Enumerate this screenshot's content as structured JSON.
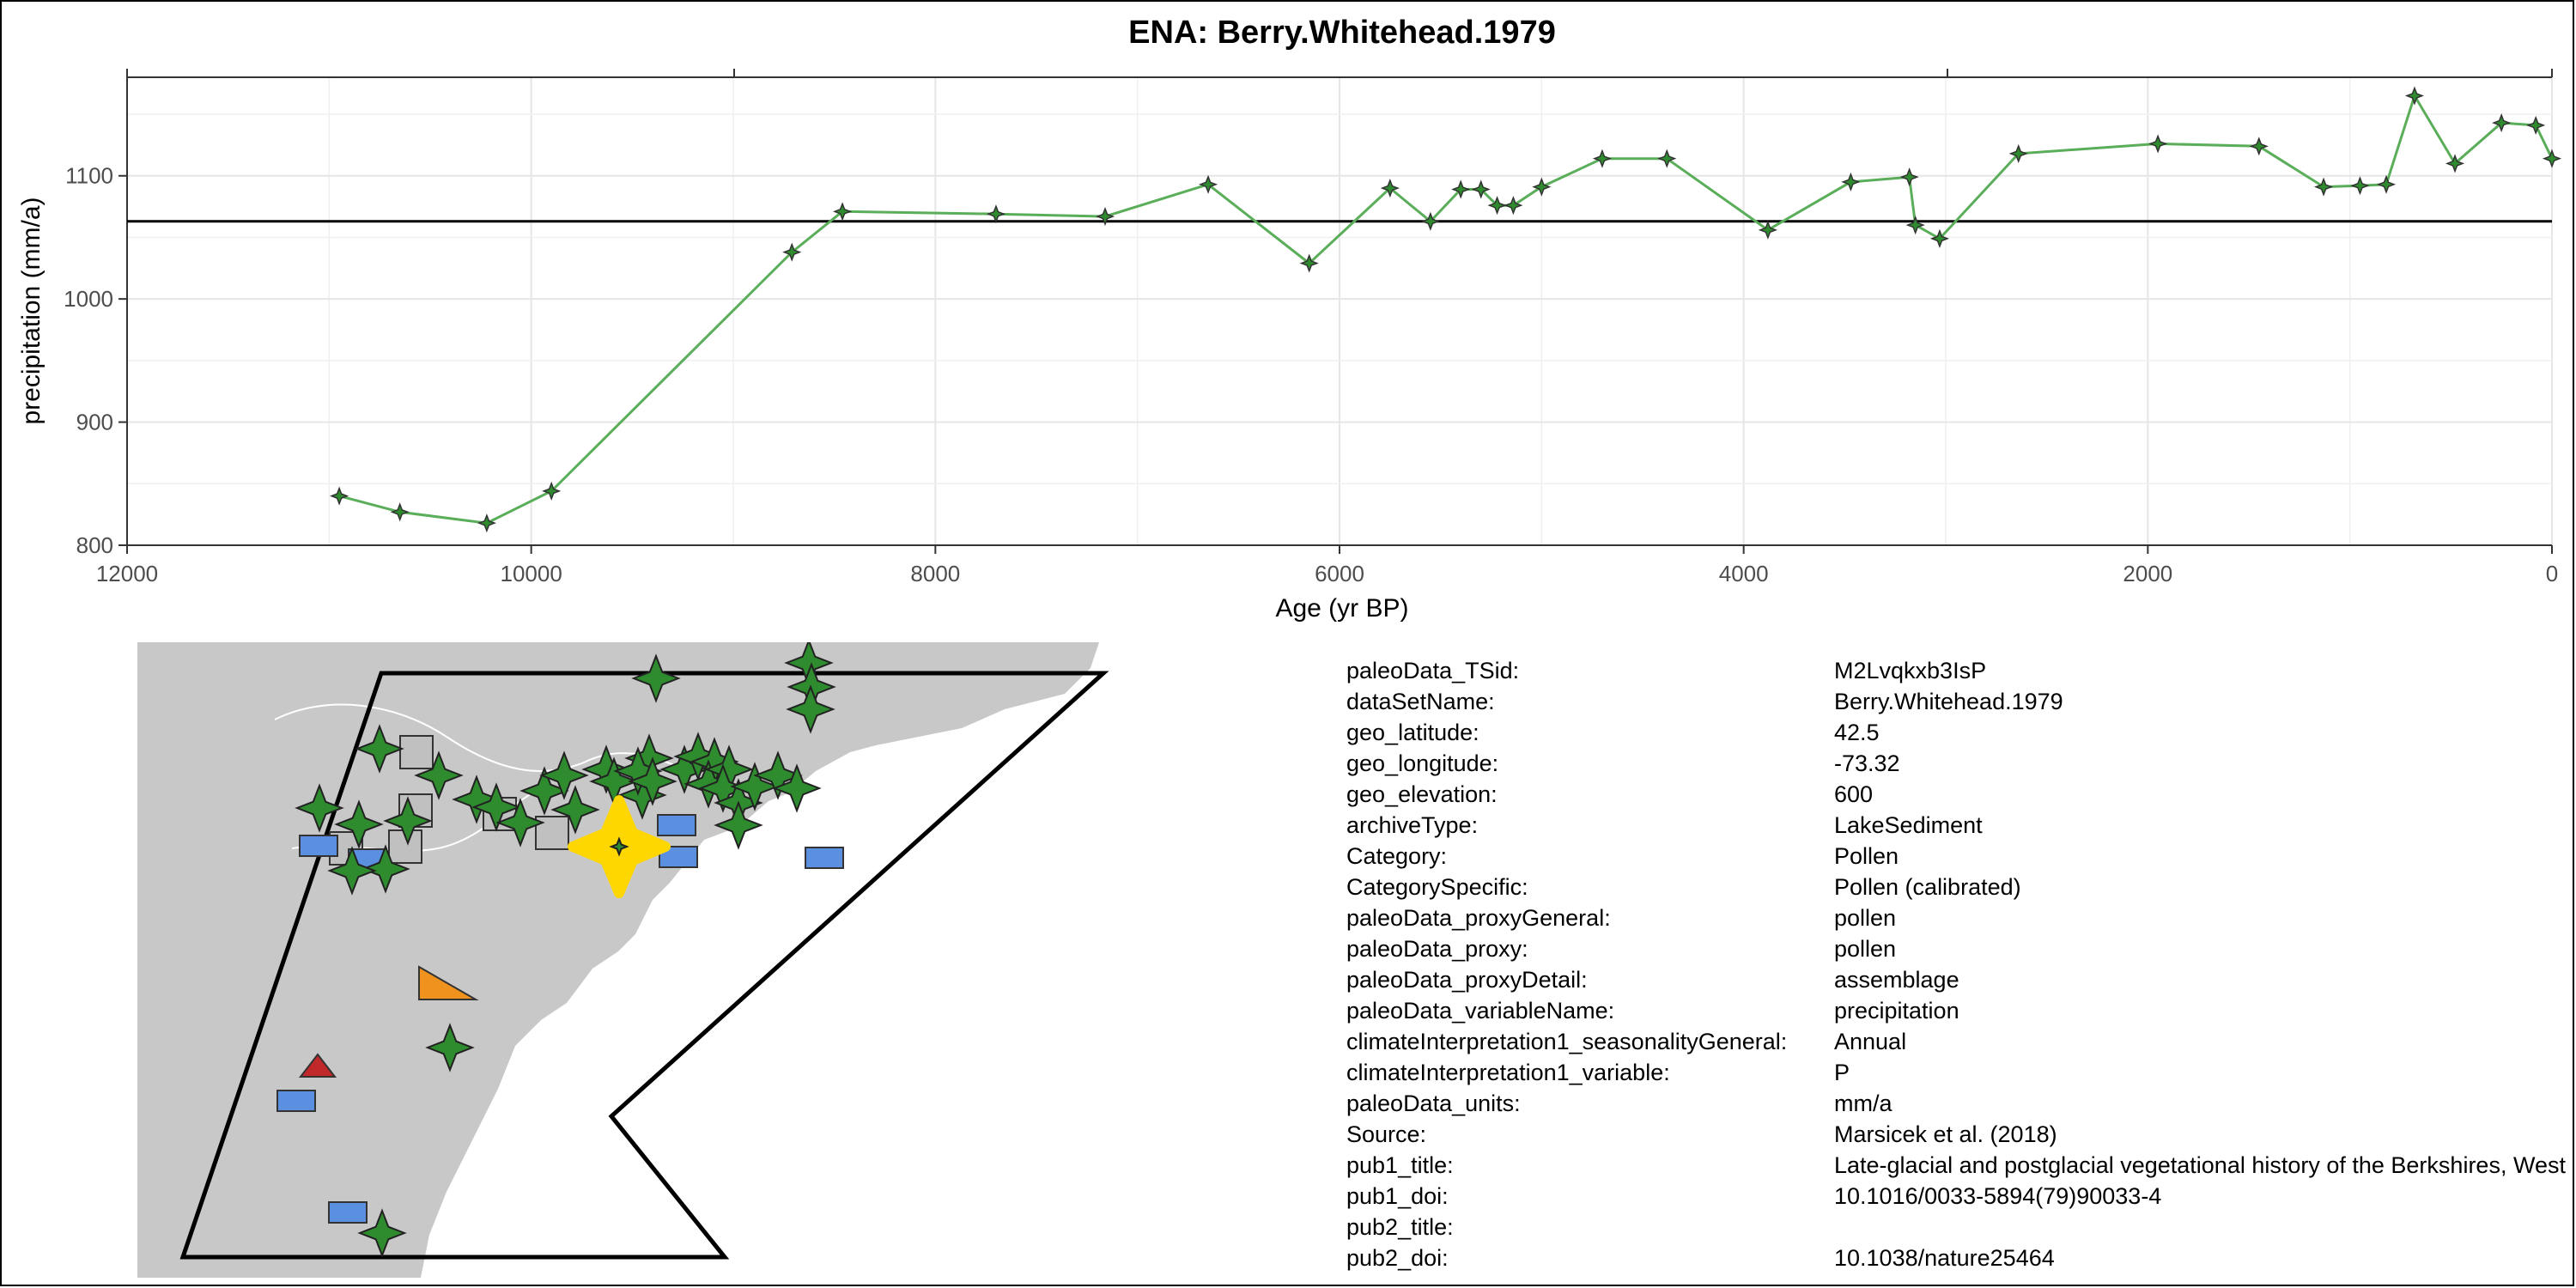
{
  "chart_data": {
    "type": "line",
    "title": "ENA: Berry.Whitehead.1979",
    "xlabel": "Age (yr BP)",
    "ylabel": "precipitation (mm/a)",
    "xlim": [
      12000,
      0
    ],
    "ylim": [
      800,
      1180
    ],
    "x_reversed": true,
    "xticks": [
      12000,
      10000,
      8000,
      6000,
      4000,
      2000,
      0
    ],
    "xtick_labels": [
      "12000",
      "10000",
      "8000",
      "6000",
      "4000",
      "2000",
      "0"
    ],
    "yticks": [
      800,
      900,
      1000,
      1100
    ],
    "ytick_labels": [
      "800",
      "900",
      "1000",
      "1100"
    ],
    "grid": true,
    "line_color": "#5aae5a",
    "reference_line": 1063,
    "series": [
      {
        "x": [
          10950,
          10650,
          10220,
          9900,
          8710,
          8460,
          7700,
          7160,
          6650,
          6150,
          5750,
          5550,
          5400,
          5300,
          5220,
          5140,
          5000,
          4700,
          4380,
          3880,
          3470,
          3180,
          3150,
          3030,
          2640,
          1950,
          1450,
          1130,
          950,
          820,
          680,
          480,
          250,
          80,
          0
        ],
        "y": [
          840,
          827,
          818,
          844,
          1038,
          1071,
          1069,
          1067,
          1093,
          1029,
          1090,
          1063,
          1089,
          1089,
          1076,
          1076,
          1091,
          1114,
          1114,
          1056,
          1095,
          1099,
          1060,
          1049,
          1118,
          1126,
          1124,
          1091,
          1092,
          1093,
          1165,
          1110,
          1143,
          1141,
          1114
        ]
      }
    ]
  },
  "metadata": [
    {
      "key": "paleoData_TSid:",
      "value": "M2Lvqkxb3IsP"
    },
    {
      "key": "dataSetName:",
      "value": "Berry.Whitehead.1979"
    },
    {
      "key": "geo_latitude:",
      "value": "42.5"
    },
    {
      "key": "geo_longitude:",
      "value": "-73.32"
    },
    {
      "key": "geo_elevation:",
      "value": "600"
    },
    {
      "key": "archiveType:",
      "value": "LakeSediment"
    },
    {
      "key": "Category:",
      "value": "Pollen"
    },
    {
      "key": "CategorySpecific:",
      "value": "Pollen (calibrated)"
    },
    {
      "key": "paleoData_proxyGeneral:",
      "value": "pollen"
    },
    {
      "key": "paleoData_proxy:",
      "value": "pollen"
    },
    {
      "key": "paleoData_proxyDetail:",
      "value": "assemblage"
    },
    {
      "key": "paleoData_variableName:",
      "value": "precipitation"
    },
    {
      "key": "climateInterpretation1_seasonalityGeneral:",
      "value": "Annual"
    },
    {
      "key": "climateInterpretation1_variable:",
      "value": "P"
    },
    {
      "key": "paleoData_units:",
      "value": "mm/a"
    },
    {
      "key": "Source:",
      "value": "Marsicek et al. (2018)"
    },
    {
      "key": "pub1_title:",
      "value": "Late-glacial and postglacial vegetational history of the Berkshires, Western Massachusetts"
    },
    {
      "key": "pub1_doi:",
      "value": "10.1016/0033-5894(79)90033-4"
    },
    {
      "key": "pub2_title:",
      "value": ""
    },
    {
      "key": "pub2_doi:",
      "value": "10.1038/nature25464"
    }
  ],
  "map": {
    "land_color": "#c8c8c8",
    "selected_site_color": "#ffd700",
    "marker_colors": {
      "pollen": "#2e8b2e",
      "lake_sediment_other": "#c0c0c0",
      "blue_sites": "#5b8fe0",
      "orange_site": "#f0921e",
      "red_site": "#c0282a"
    }
  }
}
